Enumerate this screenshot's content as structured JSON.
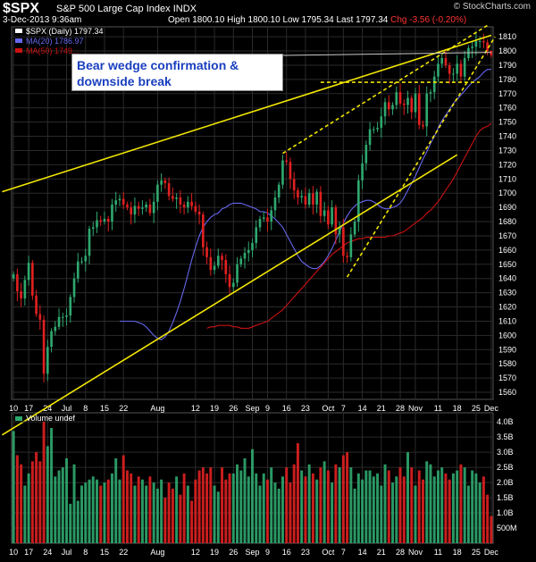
{
  "header": {
    "symbol": "$SPX",
    "name": "S&P 500 Large Cap Index",
    "exchange": "INDX",
    "datetime": "3-Dec-2013 9:36am",
    "ohlc": "Open 1800.10  High 1800.10  Low 1795.34  Last 1797.34",
    "change": "Chg -3.56 (-0.20%)",
    "brand": "© StockCharts.com"
  },
  "annotation": {
    "line1": "Bear wedge confirmation &",
    "line2": "downside break"
  },
  "legend": {
    "price": "$SPX (Daily) 1797.34",
    "ma20": "MA(20) 1786.97",
    "ma50": "MA(50) 1749..."
  },
  "colors": {
    "up": "#2fa86f",
    "down": "#e02020",
    "ma20": "#6666ee",
    "ma50": "#cc1111",
    "trendline": "#f2e600",
    "grid": "#2b2b2b"
  },
  "chart_data": [
    {
      "type": "candlestick",
      "title": "$SPX (Daily)",
      "y_ticks": [
        1560,
        1570,
        1580,
        1590,
        1600,
        1610,
        1620,
        1630,
        1640,
        1650,
        1660,
        1670,
        1680,
        1690,
        1700,
        1710,
        1720,
        1730,
        1740,
        1750,
        1760,
        1770,
        1780,
        1790,
        1800,
        1810
      ],
      "ylim": [
        1555,
        1817
      ],
      "x_ticks": [
        {
          "label": "10",
          "i": 0
        },
        {
          "label": "17",
          "i": 4
        },
        {
          "label": "24",
          "i": 9
        },
        {
          "label": "Jul",
          "i": 14
        },
        {
          "label": "8",
          "i": 19
        },
        {
          "label": "15",
          "i": 24
        },
        {
          "label": "22",
          "i": 29
        },
        {
          "label": "Aug",
          "i": 38
        },
        {
          "label": "12",
          "i": 48
        },
        {
          "label": "19",
          "i": 53
        },
        {
          "label": "26",
          "i": 58
        },
        {
          "label": "Sep",
          "i": 63
        },
        {
          "label": "9",
          "i": 67
        },
        {
          "label": "16",
          "i": 72
        },
        {
          "label": "23",
          "i": 77
        },
        {
          "label": "Oct",
          "i": 83
        },
        {
          "label": "7",
          "i": 87
        },
        {
          "label": "14",
          "i": 92
        },
        {
          "label": "21",
          "i": 97
        },
        {
          "label": "28",
          "i": 102
        },
        {
          "label": "Nov",
          "i": 106
        },
        {
          "label": "11",
          "i": 112
        },
        {
          "label": "18",
          "i": 117
        },
        {
          "label": "25",
          "i": 122
        },
        {
          "label": "Dec",
          "i": 126
        }
      ],
      "closes": [
        1643,
        1631,
        1626,
        1639,
        1651,
        1628,
        1615,
        1611,
        1573,
        1592,
        1603,
        1606,
        1613,
        1613,
        1614,
        1627,
        1640,
        1652,
        1652,
        1656,
        1675,
        1676,
        1681,
        1680,
        1682,
        1680,
        1692,
        1695,
        1696,
        1692,
        1690,
        1685,
        1691,
        1689,
        1690,
        1692,
        1686,
        1694,
        1706,
        1709,
        1707,
        1698,
        1696,
        1697,
        1692,
        1690,
        1694,
        1691,
        1687,
        1685,
        1662,
        1655,
        1646,
        1649,
        1656,
        1653,
        1643,
        1634,
        1637,
        1650,
        1654,
        1658,
        1660,
        1665,
        1676,
        1682,
        1683,
        1680,
        1688,
        1697,
        1706,
        1723,
        1722,
        1710,
        1702,
        1697,
        1698,
        1692,
        1700,
        1692,
        1701,
        1684,
        1688,
        1678,
        1690,
        1671,
        1676,
        1656,
        1655,
        1671,
        1680,
        1709,
        1721,
        1734,
        1745,
        1745,
        1746,
        1754,
        1764,
        1759,
        1762,
        1771,
        1763,
        1762,
        1767,
        1757,
        1770,
        1748,
        1747,
        1770,
        1771,
        1782,
        1791,
        1795,
        1790,
        1784,
        1784,
        1791,
        1782,
        1795,
        1802,
        1803,
        1807,
        1807,
        1806,
        1800,
        1797
      ],
      "ma20": [
        1610,
        1610,
        1610,
        1610,
        1610,
        1609,
        1608,
        1606,
        1603,
        1600,
        1598,
        1597,
        1599,
        1603,
        1609,
        1616,
        1624,
        1633,
        1643,
        1653,
        1662,
        1670,
        1676,
        1680,
        1683,
        1685,
        1686,
        1689,
        1690,
        1692,
        1693,
        1693,
        1693,
        1692,
        1691,
        1690,
        1689,
        1687,
        1687,
        1686,
        1684,
        1682,
        1679,
        1676,
        1671,
        1666,
        1661,
        1656,
        1652,
        1650,
        1648,
        1647,
        1647,
        1649,
        1652,
        1656,
        1661,
        1667,
        1673,
        1679,
        1684,
        1688,
        1691,
        1693,
        1694,
        1695,
        1695,
        1694,
        1692,
        1690,
        1689,
        1689,
        1690,
        1691,
        1693,
        1697,
        1702,
        1707,
        1712,
        1718,
        1724,
        1729,
        1735,
        1740,
        1746,
        1751,
        1755,
        1759,
        1763,
        1766,
        1769,
        1772,
        1775,
        1778,
        1780,
        1782,
        1785,
        1787,
        1787
      ],
      "ma50": [
        1605,
        1606,
        1606,
        1607,
        1607,
        1607,
        1607,
        1606,
        1606,
        1605,
        1605,
        1605,
        1606,
        1607,
        1608,
        1609,
        1610,
        1612,
        1614,
        1616,
        1618,
        1621,
        1624,
        1627,
        1630,
        1633,
        1636,
        1639,
        1642,
        1645,
        1648,
        1651,
        1654,
        1657,
        1659,
        1661,
        1663,
        1665,
        1666,
        1667,
        1668,
        1668,
        1669,
        1669,
        1669,
        1669,
        1669,
        1669,
        1670,
        1670,
        1671,
        1672,
        1673,
        1675,
        1677,
        1679,
        1681,
        1683,
        1686,
        1688,
        1691,
        1694,
        1698,
        1702,
        1706,
        1710,
        1715,
        1720,
        1725,
        1730,
        1735,
        1740,
        1744,
        1746,
        1747,
        1749
      ]
    },
    {
      "type": "bar",
      "title": "Volume undef",
      "y_ticks": [
        "500M",
        "1.0B",
        "1.5B",
        "2.0B",
        "2.5B",
        "3.0B",
        "3.5B",
        "4.0B"
      ],
      "ylim": [
        0,
        4.3
      ],
      "volumes": [
        3.7,
        2.9,
        2.6,
        1.9,
        2.3,
        2.7,
        3.0,
        2.7,
        4.0,
        3.2,
        3.8,
        2.2,
        2.4,
        2.5,
        2.8,
        1.3,
        2.6,
        1.4,
        1.9,
        2.0,
        2.1,
        2.2,
        2.1,
        1.9,
        2.0,
        2.1,
        2.3,
        2.8,
        2.1,
        2.9,
        2.4,
        2.3,
        1.9,
        2.2,
        2.1,
        1.9,
        2.2,
        2.0,
        1.8,
        2.1,
        1.5,
        2.0,
        1.8,
        2.2,
        1.6,
        2.3,
        1.9,
        1.4,
        2.1,
        2.4,
        2.5,
        2.3,
        2.5,
        1.9,
        1.7,
        2.5,
        2.1,
        2.3,
        2.3,
        2.6,
        2.4,
        2.8,
        2.2,
        3.1,
        2.3,
        1.9,
        2.3,
        2.1,
        2.5,
        2.0,
        1.8,
        2.2,
        2.5,
        2.0,
        2.6,
        3.3,
        2.4,
        2.2,
        2.6,
        2.3,
        2.1,
        2.5,
        2.7,
        2.4,
        2.0,
        2.6,
        2.5,
        2.9,
        3.0,
        2.5,
        1.8,
        2.3,
        2.1,
        2.4,
        2.4,
        2.2,
        2.3,
        1.9,
        2.6,
        2.4,
        2.0,
        2.2,
        2.5,
        2.2,
        3.0,
        2.5,
        1.9,
        2.4,
        2.1,
        2.7,
        2.6,
        2.2,
        2.4,
        2.5,
        2.3,
        2.1,
        2.3,
        2.4,
        2.6,
        2.5,
        1.9,
        2.4,
        2.3,
        2.0,
        2.2,
        1.6,
        0.9
      ]
    }
  ]
}
